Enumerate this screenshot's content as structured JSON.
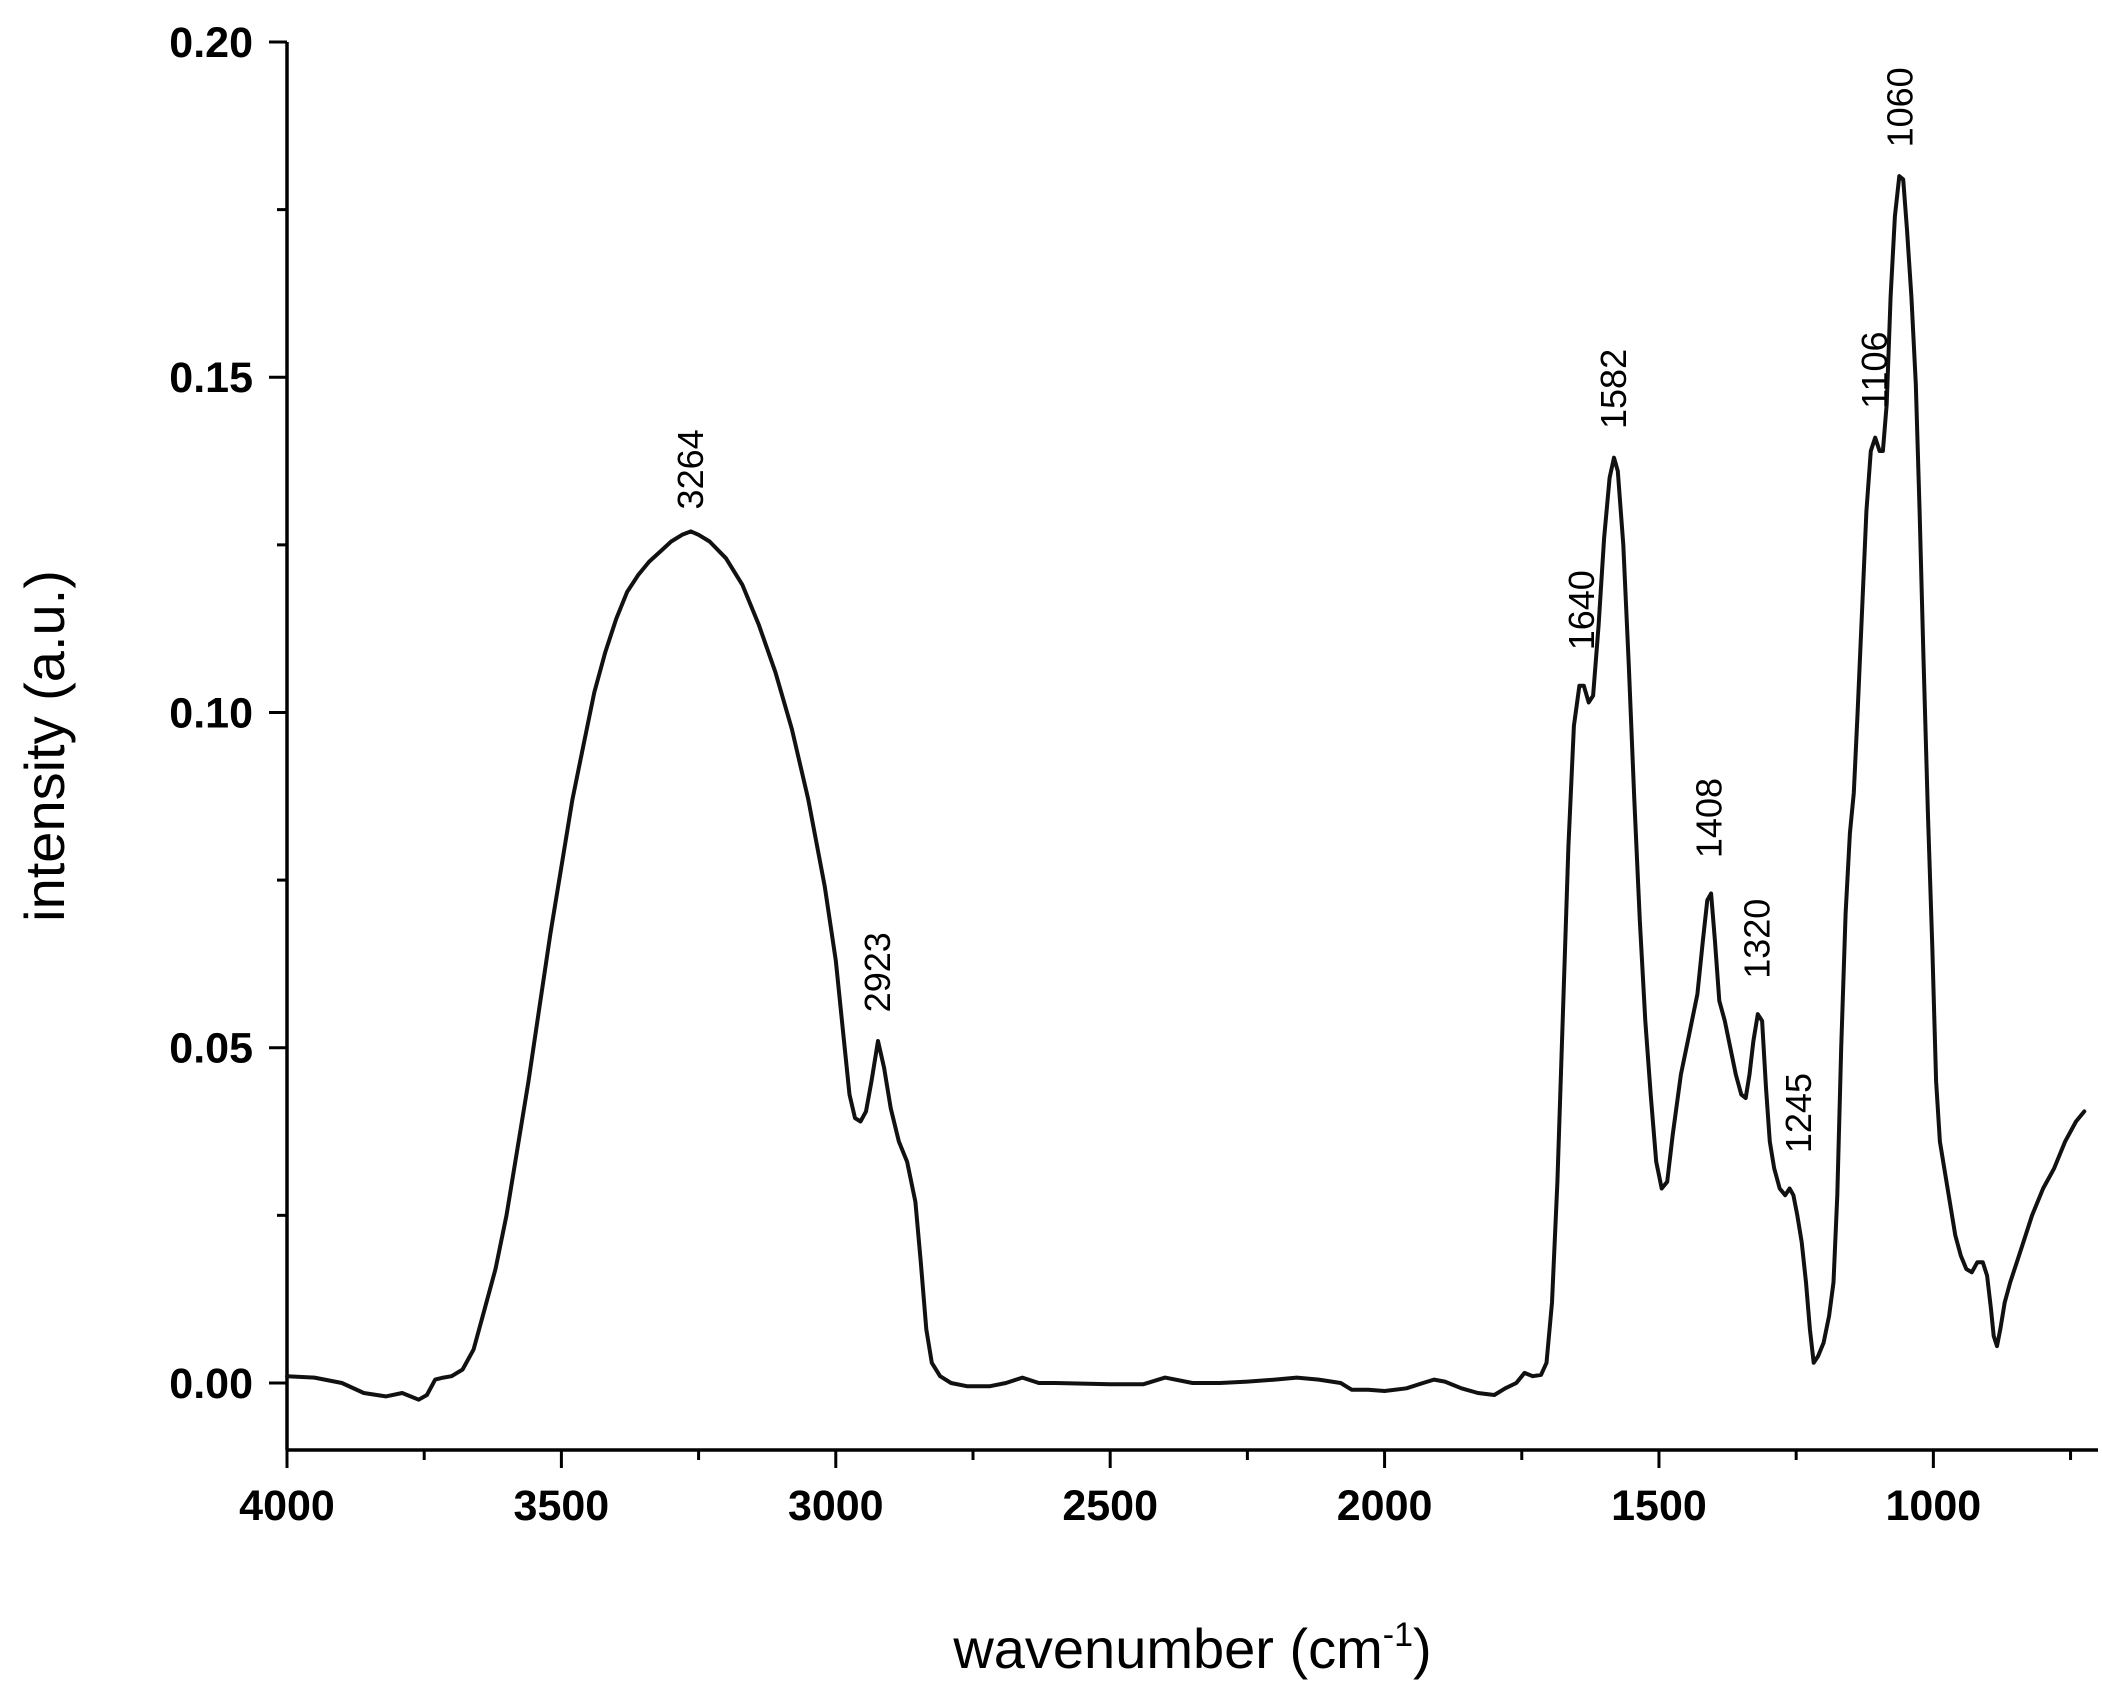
{
  "chart_data": {
    "type": "line",
    "title": "",
    "xlabel": "wavenumber (cm",
    "xlabel_sup": "-1",
    "xlabel_close": ")",
    "ylabel": "intensity (a.u.)",
    "xlim": [
      4000,
      700
    ],
    "ylim": [
      -0.01,
      0.2
    ],
    "x_reversed": true,
    "grid": false,
    "x_ticks": [
      {
        "value": 4000,
        "label": "4000"
      },
      {
        "value": 3500,
        "label": "3500"
      },
      {
        "value": 3000,
        "label": "3000"
      },
      {
        "value": 2500,
        "label": "2500"
      },
      {
        "value": 2000,
        "label": "2000"
      },
      {
        "value": 1500,
        "label": "1500"
      },
      {
        "value": 1000,
        "label": "1000"
      }
    ],
    "y_ticks": [
      {
        "value": 0.0,
        "label": "0.00"
      },
      {
        "value": 0.05,
        "label": "0.05"
      },
      {
        "value": 0.1,
        "label": "0.10"
      },
      {
        "value": 0.15,
        "label": "0.15"
      },
      {
        "value": 0.2,
        "label": "0.20"
      }
    ],
    "annotations": [
      {
        "text": "3264",
        "x": 3264,
        "y": 0.127
      },
      {
        "text": "2923",
        "x": 2923,
        "y": 0.052
      },
      {
        "text": "1640",
        "x": 1640,
        "y": 0.106
      },
      {
        "text": "1582",
        "x": 1582,
        "y": 0.139
      },
      {
        "text": "1408",
        "x": 1408,
        "y": 0.075
      },
      {
        "text": "1320",
        "x": 1320,
        "y": 0.057
      },
      {
        "text": "1245",
        "x": 1245,
        "y": 0.031
      },
      {
        "text": "1106",
        "x": 1106,
        "y": 0.142
      },
      {
        "text": "1060",
        "x": 1060,
        "y": 0.181
      }
    ],
    "series": [
      {
        "color": "#111111",
        "points": [
          [
            4000,
            0.001
          ],
          [
            3950,
            0.0008
          ],
          [
            3900,
            0.0
          ],
          [
            3860,
            -0.0015
          ],
          [
            3820,
            -0.002
          ],
          [
            3790,
            -0.0015
          ],
          [
            3760,
            -0.0025
          ],
          [
            3745,
            -0.0018
          ],
          [
            3730,
            0.0005
          ],
          [
            3715,
            0.0008
          ],
          [
            3700,
            0.001
          ],
          [
            3680,
            0.002
          ],
          [
            3660,
            0.005
          ],
          [
            3640,
            0.011
          ],
          [
            3620,
            0.017
          ],
          [
            3600,
            0.025
          ],
          [
            3580,
            0.035
          ],
          [
            3560,
            0.045
          ],
          [
            3540,
            0.056
          ],
          [
            3520,
            0.067
          ],
          [
            3500,
            0.077
          ],
          [
            3480,
            0.087
          ],
          [
            3460,
            0.095
          ],
          [
            3440,
            0.103
          ],
          [
            3420,
            0.109
          ],
          [
            3400,
            0.114
          ],
          [
            3380,
            0.118
          ],
          [
            3360,
            0.1205
          ],
          [
            3340,
            0.1225
          ],
          [
            3320,
            0.124
          ],
          [
            3300,
            0.1255
          ],
          [
            3280,
            0.1265
          ],
          [
            3264,
            0.127
          ],
          [
            3250,
            0.1265
          ],
          [
            3230,
            0.1255
          ],
          [
            3200,
            0.123
          ],
          [
            3170,
            0.119
          ],
          [
            3140,
            0.113
          ],
          [
            3110,
            0.106
          ],
          [
            3080,
            0.0975
          ],
          [
            3050,
            0.087
          ],
          [
            3020,
            0.074
          ],
          [
            3000,
            0.063
          ],
          [
            2985,
            0.051
          ],
          [
            2975,
            0.043
          ],
          [
            2965,
            0.0395
          ],
          [
            2955,
            0.039
          ],
          [
            2945,
            0.0405
          ],
          [
            2935,
            0.045
          ],
          [
            2923,
            0.051
          ],
          [
            2912,
            0.047
          ],
          [
            2900,
            0.041
          ],
          [
            2885,
            0.036
          ],
          [
            2870,
            0.033
          ],
          [
            2855,
            0.027
          ],
          [
            2845,
            0.018
          ],
          [
            2835,
            0.008
          ],
          [
            2825,
            0.003
          ],
          [
            2810,
            0.001
          ],
          [
            2790,
            0.0
          ],
          [
            2760,
            -0.0005
          ],
          [
            2720,
            -0.0005
          ],
          [
            2690,
            0.0
          ],
          [
            2660,
            0.0008
          ],
          [
            2630,
            0.0
          ],
          [
            2600,
            0.0
          ],
          [
            2500,
            -0.0002
          ],
          [
            2440,
            -0.0002
          ],
          [
            2400,
            0.0008
          ],
          [
            2350,
            0.0
          ],
          [
            2300,
            0.0
          ],
          [
            2250,
            0.0002
          ],
          [
            2200,
            0.0005
          ],
          [
            2160,
            0.0008
          ],
          [
            2120,
            0.0005
          ],
          [
            2080,
            0.0
          ],
          [
            2060,
            -0.001
          ],
          [
            2030,
            -0.001
          ],
          [
            2000,
            -0.0012
          ],
          [
            1960,
            -0.0008
          ],
          [
            1930,
            0.0
          ],
          [
            1910,
            0.0005
          ],
          [
            1890,
            0.0002
          ],
          [
            1860,
            -0.0008
          ],
          [
            1830,
            -0.0015
          ],
          [
            1800,
            -0.0018
          ],
          [
            1780,
            -0.0008
          ],
          [
            1760,
            0.0
          ],
          [
            1745,
            0.0015
          ],
          [
            1730,
            0.001
          ],
          [
            1715,
            0.0012
          ],
          [
            1705,
            0.003
          ],
          [
            1695,
            0.012
          ],
          [
            1685,
            0.03
          ],
          [
            1675,
            0.055
          ],
          [
            1665,
            0.08
          ],
          [
            1655,
            0.098
          ],
          [
            1645,
            0.104
          ],
          [
            1637,
            0.104
          ],
          [
            1628,
            0.1015
          ],
          [
            1620,
            0.1025
          ],
          [
            1610,
            0.113
          ],
          [
            1600,
            0.126
          ],
          [
            1590,
            0.135
          ],
          [
            1582,
            0.138
          ],
          [
            1575,
            0.136
          ],
          [
            1565,
            0.125
          ],
          [
            1555,
            0.107
          ],
          [
            1545,
            0.087
          ],
          [
            1535,
            0.069
          ],
          [
            1525,
            0.054
          ],
          [
            1515,
            0.043
          ],
          [
            1505,
            0.033
          ],
          [
            1495,
            0.029
          ],
          [
            1485,
            0.03
          ],
          [
            1475,
            0.037
          ],
          [
            1460,
            0.046
          ],
          [
            1445,
            0.052
          ],
          [
            1430,
            0.058
          ],
          [
            1420,
            0.066
          ],
          [
            1412,
            0.072
          ],
          [
            1405,
            0.073
          ],
          [
            1398,
            0.066
          ],
          [
            1390,
            0.057
          ],
          [
            1380,
            0.054
          ],
          [
            1370,
            0.05
          ],
          [
            1360,
            0.046
          ],
          [
            1350,
            0.043
          ],
          [
            1342,
            0.0425
          ],
          [
            1335,
            0.046
          ],
          [
            1328,
            0.051
          ],
          [
            1320,
            0.055
          ],
          [
            1312,
            0.054
          ],
          [
            1305,
            0.044
          ],
          [
            1298,
            0.036
          ],
          [
            1290,
            0.032
          ],
          [
            1280,
            0.029
          ],
          [
            1270,
            0.028
          ],
          [
            1262,
            0.029
          ],
          [
            1255,
            0.028
          ],
          [
            1248,
            0.025
          ],
          [
            1240,
            0.021
          ],
          [
            1232,
            0.015
          ],
          [
            1225,
            0.008
          ],
          [
            1218,
            0.003
          ],
          [
            1210,
            0.004
          ],
          [
            1200,
            0.006
          ],
          [
            1190,
            0.01
          ],
          [
            1182,
            0.015
          ],
          [
            1175,
            0.028
          ],
          [
            1168,
            0.05
          ],
          [
            1160,
            0.07
          ],
          [
            1152,
            0.082
          ],
          [
            1145,
            0.088
          ],
          [
            1138,
            0.1
          ],
          [
            1130,
            0.115
          ],
          [
            1122,
            0.13
          ],
          [
            1114,
            0.139
          ],
          [
            1106,
            0.141
          ],
          [
            1098,
            0.139
          ],
          [
            1092,
            0.139
          ],
          [
            1085,
            0.146
          ],
          [
            1078,
            0.162
          ],
          [
            1070,
            0.174
          ],
          [
            1062,
            0.18
          ],
          [
            1055,
            0.1795
          ],
          [
            1048,
            0.172
          ],
          [
            1040,
            0.162
          ],
          [
            1032,
            0.149
          ],
          [
            1025,
            0.13
          ],
          [
            1018,
            0.108
          ],
          [
            1010,
            0.085
          ],
          [
            1002,
            0.065
          ],
          [
            995,
            0.045
          ],
          [
            988,
            0.036
          ],
          [
            980,
            0.032
          ],
          [
            970,
            0.027
          ],
          [
            960,
            0.022
          ],
          [
            950,
            0.019
          ],
          [
            940,
            0.017
          ],
          [
            930,
            0.0165
          ],
          [
            920,
            0.018
          ],
          [
            910,
            0.018
          ],
          [
            902,
            0.016
          ],
          [
            895,
            0.011
          ],
          [
            890,
            0.007
          ],
          [
            884,
            0.0055
          ],
          [
            878,
            0.008
          ],
          [
            870,
            0.012
          ],
          [
            860,
            0.015
          ],
          [
            840,
            0.02
          ],
          [
            820,
            0.025
          ],
          [
            800,
            0.029
          ],
          [
            780,
            0.032
          ],
          [
            760,
            0.036
          ],
          [
            740,
            0.039
          ],
          [
            725,
            0.0405
          ]
        ]
      }
    ]
  }
}
